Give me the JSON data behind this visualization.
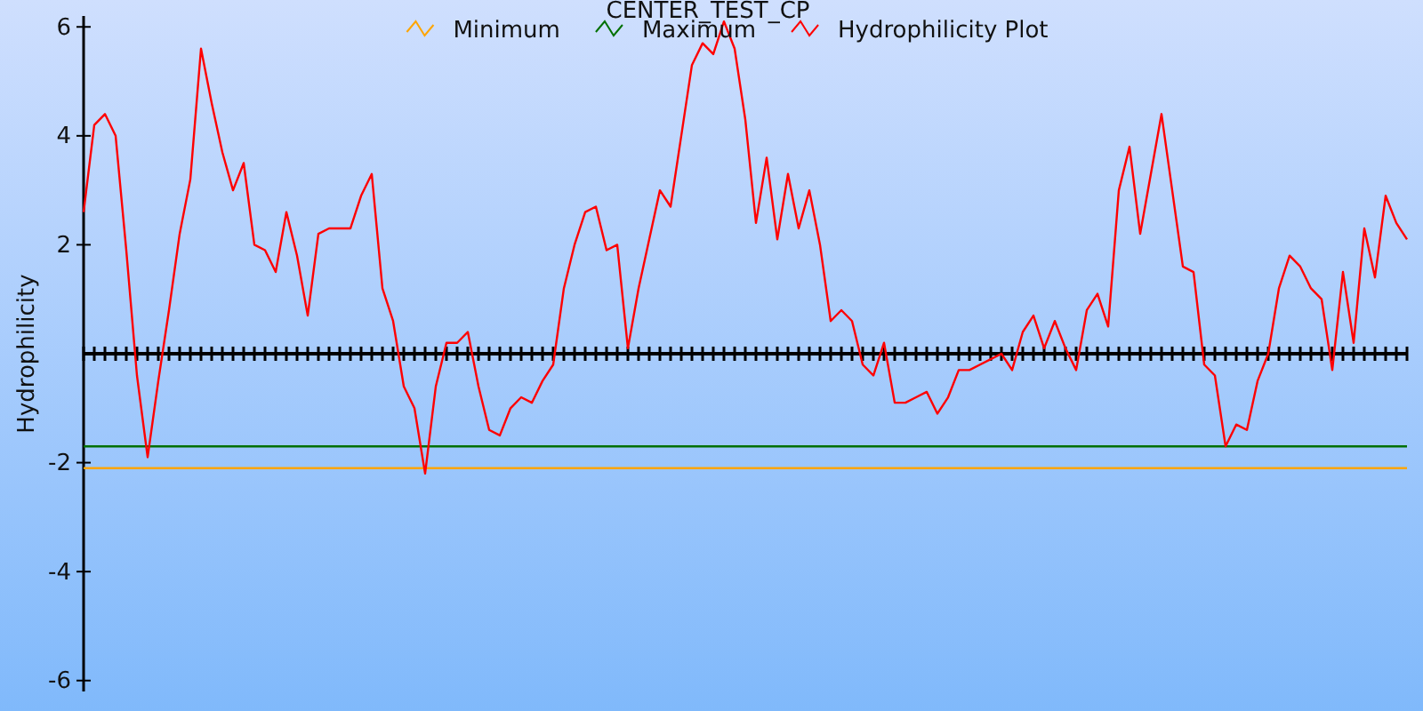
{
  "chart_data": {
    "type": "line",
    "title": "CENTER_TEST_CP",
    "ylabel": "Hydrophilicity",
    "categories": [
      null,
      null,
      null,
      null,
      null,
      null,
      null,
      null,
      null,
      null,
      null,
      null,
      null,
      null,
      null,
      null,
      null,
      null,
      null,
      null,
      null,
      null,
      null,
      null,
      null,
      null,
      null,
      null,
      null,
      null,
      null,
      null,
      null,
      null,
      null,
      null,
      null,
      null,
      null,
      null,
      null,
      null,
      null,
      null,
      null,
      null,
      null,
      null,
      null,
      null,
      null,
      null,
      null,
      null,
      null,
      null,
      null,
      null,
      null,
      null,
      null,
      null,
      null,
      null,
      null,
      null,
      null,
      null,
      null,
      null,
      null,
      null,
      null,
      null,
      null,
      null,
      null,
      null,
      null,
      null,
      null,
      null,
      null,
      null,
      null,
      null,
      null,
      null,
      null,
      null,
      null,
      null,
      null,
      null,
      null,
      null,
      null,
      null,
      null,
      null,
      null,
      null,
      null,
      null,
      null,
      null,
      null,
      null,
      null,
      null,
      null,
      null,
      null,
      null,
      null,
      null,
      null,
      null,
      null,
      null,
      null,
      null,
      null,
      null,
      null
    ],
    "series": [
      {
        "name": "Minimum",
        "color": "#ffa500",
        "values": [
          -2.1,
          -2.1,
          -2.1,
          -2.1,
          -2.1,
          -2.1,
          -2.1,
          -2.1,
          -2.1,
          -2.1,
          -2.1,
          -2.1,
          -2.1,
          -2.1,
          -2.1,
          -2.1,
          -2.1,
          -2.1,
          -2.1,
          -2.1,
          -2.1,
          -2.1,
          -2.1,
          -2.1,
          -2.1,
          -2.1,
          -2.1,
          -2.1,
          -2.1,
          -2.1,
          -2.1,
          -2.1,
          -2.1,
          -2.1,
          -2.1,
          -2.1,
          -2.1,
          -2.1,
          -2.1,
          -2.1,
          -2.1,
          -2.1,
          -2.1,
          -2.1,
          -2.1,
          -2.1,
          -2.1,
          -2.1,
          -2.1,
          -2.1,
          -2.1,
          -2.1,
          -2.1,
          -2.1,
          -2.1,
          -2.1,
          -2.1,
          -2.1,
          -2.1,
          -2.1,
          -2.1,
          -2.1,
          -2.1,
          -2.1,
          -2.1,
          -2.1,
          -2.1,
          -2.1,
          -2.1,
          -2.1,
          -2.1,
          -2.1,
          -2.1,
          -2.1,
          -2.1,
          -2.1,
          -2.1,
          -2.1,
          -2.1,
          -2.1,
          -2.1,
          -2.1,
          -2.1,
          -2.1,
          -2.1,
          -2.1,
          -2.1,
          -2.1,
          -2.1,
          -2.1,
          -2.1,
          -2.1,
          -2.1,
          -2.1,
          -2.1,
          -2.1,
          -2.1,
          -2.1,
          -2.1,
          -2.1,
          -2.1,
          -2.1,
          -2.1,
          -2.1,
          -2.1,
          -2.1,
          -2.1,
          -2.1,
          -2.1,
          -2.1,
          -2.1,
          -2.1,
          -2.1,
          -2.1,
          -2.1,
          -2.1,
          -2.1,
          -2.1,
          -2.1,
          -2.1,
          -2.1,
          -2.1,
          -2.1,
          -2.1,
          -2.1
        ]
      },
      {
        "name": "Maximum",
        "color": "#007000",
        "values": [
          -1.7,
          -1.7,
          -1.7,
          -1.7,
          -1.7,
          -1.7,
          -1.7,
          -1.7,
          -1.7,
          -1.7,
          -1.7,
          -1.7,
          -1.7,
          -1.7,
          -1.7,
          -1.7,
          -1.7,
          -1.7,
          -1.7,
          -1.7,
          -1.7,
          -1.7,
          -1.7,
          -1.7,
          -1.7,
          -1.7,
          -1.7,
          -1.7,
          -1.7,
          -1.7,
          -1.7,
          -1.7,
          -1.7,
          -1.7,
          -1.7,
          -1.7,
          -1.7,
          -1.7,
          -1.7,
          -1.7,
          -1.7,
          -1.7,
          -1.7,
          -1.7,
          -1.7,
          -1.7,
          -1.7,
          -1.7,
          -1.7,
          -1.7,
          -1.7,
          -1.7,
          -1.7,
          -1.7,
          -1.7,
          -1.7,
          -1.7,
          -1.7,
          -1.7,
          -1.7,
          -1.7,
          -1.7,
          -1.7,
          -1.7,
          -1.7,
          -1.7,
          -1.7,
          -1.7,
          -1.7,
          -1.7,
          -1.7,
          -1.7,
          -1.7,
          -1.7,
          -1.7,
          -1.7,
          -1.7,
          -1.7,
          -1.7,
          -1.7,
          -1.7,
          -1.7,
          -1.7,
          -1.7,
          -1.7,
          -1.7,
          -1.7,
          -1.7,
          -1.7,
          -1.7,
          -1.7,
          -1.7,
          -1.7,
          -1.7,
          -1.7,
          -1.7,
          -1.7,
          -1.7,
          -1.7,
          -1.7,
          -1.7,
          -1.7,
          -1.7,
          -1.7,
          -1.7,
          -1.7,
          -1.7,
          -1.7,
          -1.7,
          -1.7,
          -1.7,
          -1.7,
          -1.7,
          -1.7,
          -1.7,
          -1.7,
          -1.7,
          -1.7,
          -1.7,
          -1.7,
          -1.7,
          -1.7,
          -1.7,
          -1.7,
          -1.7
        ]
      },
      {
        "name": "Hydrophilicity Plot",
        "color": "#ff0000",
        "values": [
          2.6,
          4.2,
          4.4,
          4.0,
          1.9,
          -0.4,
          -1.9,
          -0.5,
          0.8,
          2.2,
          3.2,
          5.6,
          4.6,
          3.7,
          3.0,
          3.5,
          2.0,
          1.9,
          1.5,
          2.6,
          1.8,
          0.7,
          2.2,
          2.3,
          2.3,
          2.3,
          2.9,
          3.3,
          1.2,
          0.6,
          -0.6,
          -1.0,
          -2.2,
          -0.6,
          0.2,
          0.2,
          0.4,
          -0.6,
          -1.4,
          -1.5,
          -1.0,
          -0.8,
          -0.9,
          -0.5,
          -0.2,
          1.2,
          2.0,
          2.6,
          2.7,
          1.9,
          2.0,
          0.1,
          1.2,
          2.1,
          3.0,
          2.7,
          4.0,
          5.3,
          5.7,
          5.5,
          6.1,
          5.6,
          4.3,
          2.4,
          3.6,
          2.1,
          3.3,
          2.3,
          3.0,
          2.0,
          0.6,
          0.8,
          0.6,
          -0.2,
          -0.4,
          0.2,
          -0.9,
          -0.9,
          -0.8,
          -0.7,
          -1.1,
          -0.8,
          -0.3,
          -0.3,
          -0.2,
          -0.1,
          0.0,
          -0.3,
          0.4,
          0.7,
          0.1,
          0.6,
          0.1,
          -0.3,
          0.8,
          1.1,
          0.5,
          3.0,
          3.8,
          2.2,
          3.3,
          4.4,
          3.0,
          1.6,
          1.5,
          -0.2,
          -0.4,
          -1.7,
          -1.3,
          -1.4,
          -0.5,
          0.0,
          1.2,
          1.8,
          1.6,
          1.2,
          1.0,
          -0.3,
          1.5,
          0.2,
          2.3,
          1.4,
          2.9,
          2.4,
          2.1
        ]
      }
    ],
    "ylim": [
      -6.2,
      6.2
    ],
    "yticks": [
      -6,
      -4,
      -2,
      2,
      4,
      6
    ],
    "tick_labels": "y",
    "legend": "top",
    "marker": "none",
    "line_style": "solid"
  }
}
